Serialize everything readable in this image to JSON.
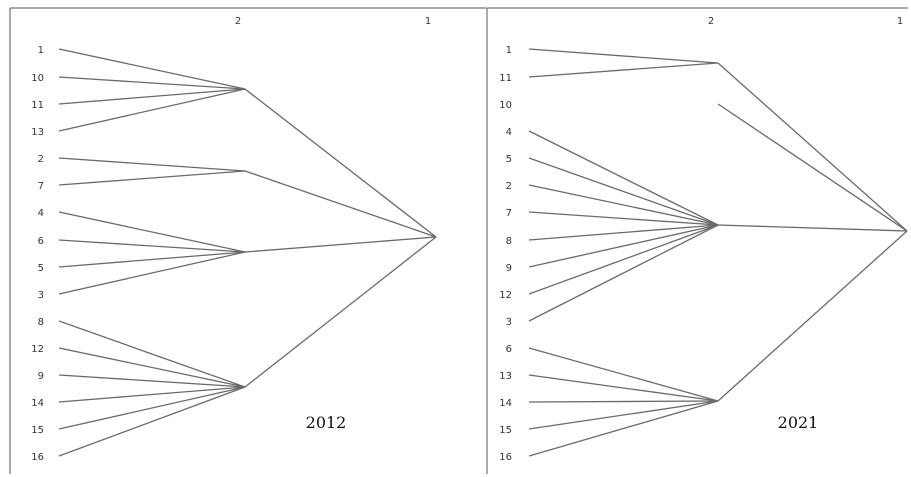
{
  "panels": [
    {
      "year": "2012",
      "levels": [
        "2",
        "1"
      ],
      "leaves": [
        "1",
        "10",
        "11",
        "13",
        "2",
        "7",
        "4",
        "6",
        "5",
        "3",
        "8",
        "12",
        "9",
        "14",
        "15",
        "16"
      ],
      "groups": [
        {
          "members": [
            "1",
            "10",
            "11",
            "13"
          ]
        },
        {
          "members": [
            "2",
            "7"
          ]
        },
        {
          "members": [
            "4",
            "6",
            "5",
            "3"
          ]
        },
        {
          "members": [
            "8",
            "12",
            "9",
            "14",
            "15",
            "16"
          ]
        }
      ]
    },
    {
      "year": "2021",
      "levels": [
        "2",
        "1"
      ],
      "leaves": [
        "1",
        "11",
        "10",
        "4",
        "5",
        "2",
        "7",
        "8",
        "9",
        "12",
        "3",
        "6",
        "13",
        "14",
        "15",
        "16"
      ],
      "groups": [
        {
          "members": [
            "1",
            "11"
          ]
        },
        {
          "members": [
            "10"
          ]
        },
        {
          "members": [
            "4",
            "5",
            "2",
            "7",
            "8",
            "9",
            "12",
            "3"
          ]
        },
        {
          "members": [
            "6",
            "13",
            "14",
            "15",
            "16"
          ]
        }
      ]
    }
  ],
  "colors": {
    "edge": "#6a6a6a",
    "text": "#333333",
    "frame": "#555555"
  }
}
